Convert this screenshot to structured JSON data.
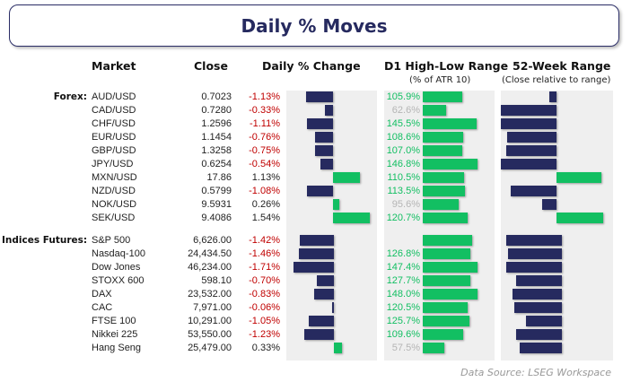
{
  "title": "Daily % Moves",
  "headers": {
    "market": "Market",
    "close": "Close",
    "change": "Daily % Change",
    "d1": "D1 High-Low Range",
    "d1_sub": "(% of ATR 10)",
    "w52": "52-Week Range",
    "w52_sub": "(Close relative to range)"
  },
  "source": "Data Source: LSEG Workspace",
  "colors": {
    "negative": "#262a5f",
    "positive": "#12bf62",
    "negative_text": "#c00000",
    "panel": "#efefef",
    "dim_text": "#b5b5b5",
    "d1_text": "#12bf62"
  },
  "chart_data": {
    "type": "table",
    "groups": [
      {
        "label": "Forex:",
        "rows": [
          {
            "market": "AUD/USD",
            "close": "0.7023",
            "change": -1.13,
            "change_label": "-1.13%",
            "d1": 105.9,
            "d1_label": "105.9%",
            "w52": -0.13
          },
          {
            "market": "CAD/USD",
            "close": "0.7280",
            "change": -0.33,
            "change_label": "-0.33%",
            "d1": 62.6,
            "d1_label": "62.6%",
            "w52": -1.0
          },
          {
            "market": "CHF/USD",
            "close": "1.2596",
            "change": -1.11,
            "change_label": "-1.11%",
            "d1": 145.5,
            "d1_label": "145.5%",
            "w52": -1.0
          },
          {
            "market": "EUR/USD",
            "close": "1.1454",
            "change": -0.76,
            "change_label": "-0.76%",
            "d1": 108.6,
            "d1_label": "108.6%",
            "w52": -0.88
          },
          {
            "market": "GBP/USD",
            "close": "1.3258",
            "change": -0.75,
            "change_label": "-0.75%",
            "d1": 107.0,
            "d1_label": "107.0%",
            "w52": -0.9
          },
          {
            "market": "JPY/USD",
            "close": "0.6254",
            "change": -0.54,
            "change_label": "-0.54%",
            "d1": 146.8,
            "d1_label": "146.8%",
            "w52": -1.0
          },
          {
            "market": "MXN/USD",
            "close": "17.86",
            "change": 1.13,
            "change_label": "1.13%",
            "d1": 110.5,
            "d1_label": "110.5%",
            "w52": 0.8
          },
          {
            "market": "NZD/USD",
            "close": "0.5799",
            "change": -1.08,
            "change_label": "-1.08%",
            "d1": 113.5,
            "d1_label": "113.5%",
            "w52": -0.83
          },
          {
            "market": "NOK/USD",
            "close": "9.5931",
            "change": 0.26,
            "change_label": "0.26%",
            "d1": 95.6,
            "d1_label": "95.6%",
            "w52": -0.26
          },
          {
            "market": "SEK/USD",
            "close": "9.4086",
            "change": 1.54,
            "change_label": "1.54%",
            "d1": 120.7,
            "d1_label": "120.7%",
            "w52": 0.84
          }
        ]
      },
      {
        "label": "Indices Futures:",
        "rows": [
          {
            "market": "S&P 500",
            "close": "6,626.00",
            "change": -1.42,
            "change_label": "-1.42%",
            "d1": 133.0,
            "d1_label": "",
            "w52": -1.0
          },
          {
            "market": "Nasdaq-100",
            "close": "24,434.50",
            "change": -1.46,
            "change_label": "-1.46%",
            "d1": 126.8,
            "d1_label": "126.8%",
            "w52": -0.97
          },
          {
            "market": "Dow Jones",
            "close": "46,234.00",
            "change": -1.71,
            "change_label": "-1.71%",
            "d1": 147.4,
            "d1_label": "147.4%",
            "w52": -1.0
          },
          {
            "market": "STOXX 600",
            "close": "598.10",
            "change": -0.7,
            "change_label": "-0.70%",
            "d1": 127.7,
            "d1_label": "127.7%",
            "w52": -0.82
          },
          {
            "market": "DAX",
            "close": "23,532.00",
            "change": -0.83,
            "change_label": "-0.83%",
            "d1": 148.0,
            "d1_label": "148.0%",
            "w52": -0.89
          },
          {
            "market": "CAC",
            "close": "7,971.00",
            "change": -0.06,
            "change_label": "-0.06%",
            "d1": 120.5,
            "d1_label": "120.5%",
            "w52": -0.85
          },
          {
            "market": "FTSE 100",
            "close": "10,291.00",
            "change": -1.05,
            "change_label": "-1.05%",
            "d1": 125.7,
            "d1_label": "125.7%",
            "w52": -0.64
          },
          {
            "market": "Nikkei 225",
            "close": "53,550.00",
            "change": -1.23,
            "change_label": "-1.23%",
            "d1": 109.6,
            "d1_label": "109.6%",
            "w52": -0.82
          },
          {
            "market": "Hang Seng",
            "close": "25,479.00",
            "change": 0.33,
            "change_label": "0.33%",
            "d1": 57.5,
            "d1_label": "57.5%",
            "w52": -0.76
          }
        ]
      }
    ]
  }
}
